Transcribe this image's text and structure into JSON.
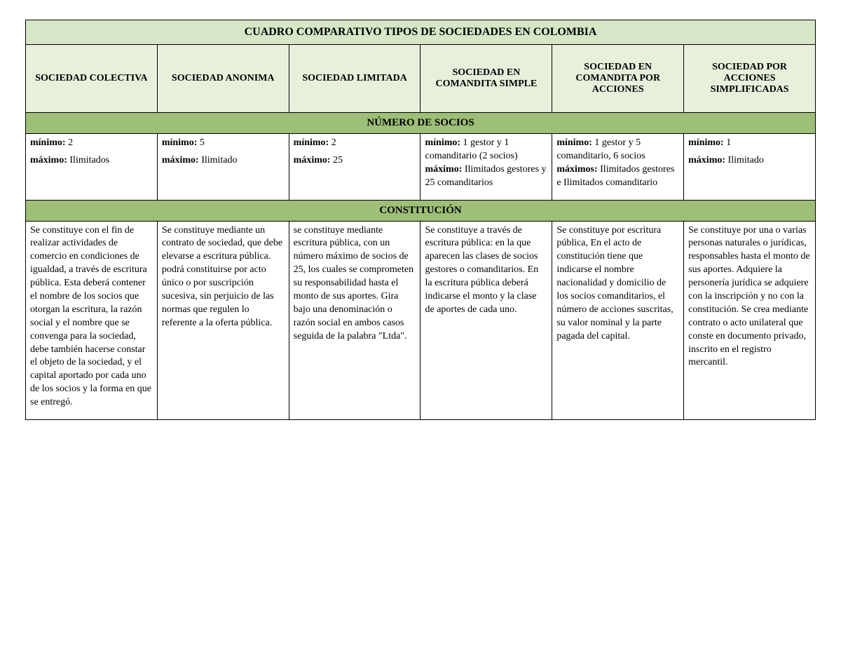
{
  "title": "CUADRO COMPARATIVO TIPOS DE SOCIEDADES EN COLOMBIA",
  "columns": [
    "SOCIEDAD COLECTIVA",
    "SOCIEDAD ANONIMA",
    "SOCIEDAD LIMITADA",
    "SOCIEDAD EN COMANDITA SIMPLE",
    "SOCIEDAD EN COMANDITA POR ACCIONES",
    "SOCIEDAD POR ACCIONES SIMPLIFICADAS"
  ],
  "sections": {
    "socios": {
      "heading": "NÚMERO DE SOCIOS",
      "labels": {
        "min": "mínimo:",
        "max": "máximo:",
        "maxs": "máximos:"
      },
      "cells": [
        {
          "min_val": "2",
          "max_val": "Ilimitados"
        },
        {
          "min_val": "5",
          "max_val": "Ilimitado"
        },
        {
          "min_val": "2",
          "max_val": "25"
        },
        {
          "min_val": "1 gestor y 1 comanditario (2 socios)",
          "max_val": "Ilimitados gestores y 25 comanditarios"
        },
        {
          "min_val": "1 gestor y 5 comanditario, 6 socios",
          "max_val": "Ilimitados gestores e Ilimitados comanditario"
        },
        {
          "min_val": "1",
          "max_val": "Ilimitado"
        }
      ]
    },
    "constitucion": {
      "heading": "CONSTITUCIÓN",
      "cells": [
        "Se constituye con el fin de realizar actividades de comercio en condiciones de igualdad, a través de escritura pública. Esta deberá contener el nombre de los socios que otorgan la escritura, la razón social y el nombre que se convenga para la sociedad, debe también hacerse constar el objeto de la sociedad, y el capital aportado por cada uno de los socios y la forma en que se entregó.",
        "Se constituye mediante un contrato de sociedad, que debe elevarse a escritura pública.\npodrá constituirse por acto único o por suscripción sucesiva, sin perjuicio de las normas que regulen lo referente a la oferta pública.",
        "se constituye mediante escritura pública, con un número máximo de socios de 25, los cuales se comprometen su responsabilidad hasta el monto de sus aportes.\nGira bajo una denominación o razón social en ambos casos seguida de la palabra \"Ltda\".",
        "Se constituye a través de escritura pública: en la que aparecen las clases de socios gestores o comanditarios. En la escritura pública deberá indicarse el monto y la clase de aportes de cada uno.",
        "Se constituye por escritura pública, En el acto de constitución tiene que indicarse el nombre nacionalidad y domicilio de los socios comanditarios, el número de acciones suscritas, su valor nominal y la parte pagada del capital.",
        "Se constituye por una o varias personas naturales o jurídicas, responsables hasta el monto de sus aportes. Adquiere la personería jurídica se adquiere con la inscripción y no con la constitución. Se crea mediante contrato o acto unilateral que conste en documento privado, inscrito en el registro mercantil."
      ]
    }
  },
  "colors": {
    "title_bg": "#d7e6c6",
    "header_bg": "#e8f0dc",
    "section_bg": "#9dbf77",
    "border": "#000000",
    "text": "#000000"
  }
}
